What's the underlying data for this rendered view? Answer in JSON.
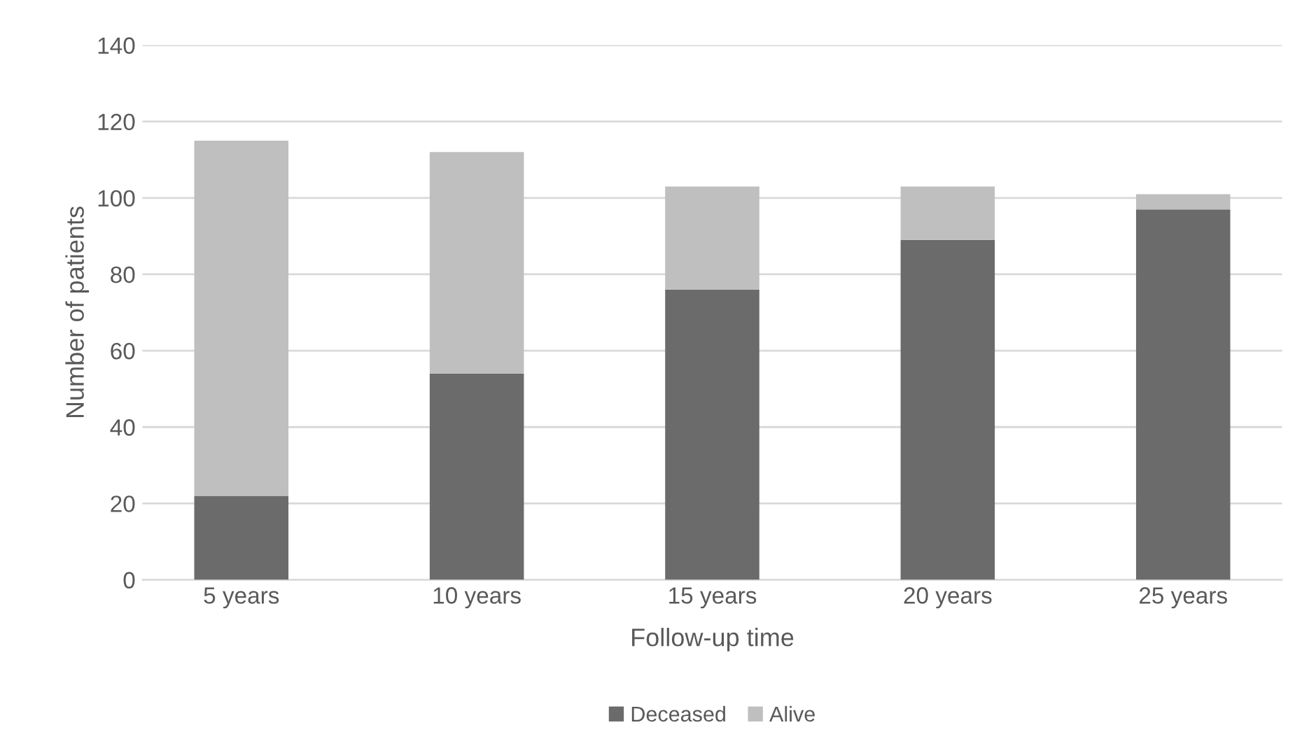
{
  "chart_data": {
    "type": "bar",
    "stacked": true,
    "xlabel": "Follow-up time",
    "ylabel": "Number of patients",
    "categories": [
      "5 years",
      "10 years",
      "15 years",
      "20 years",
      "25 years"
    ],
    "series": [
      {
        "name": "Deceased",
        "color": "#6b6b6b",
        "values": [
          22,
          54,
          76,
          89,
          97
        ]
      },
      {
        "name": "Alive",
        "color": "#bfbfbf",
        "values": [
          93,
          58,
          27,
          14,
          4
        ]
      }
    ],
    "ylim": [
      0,
      140
    ],
    "yticks": [
      0,
      20,
      40,
      60,
      80,
      100,
      120,
      140
    ],
    "grid": "y",
    "legend": "bottom"
  }
}
